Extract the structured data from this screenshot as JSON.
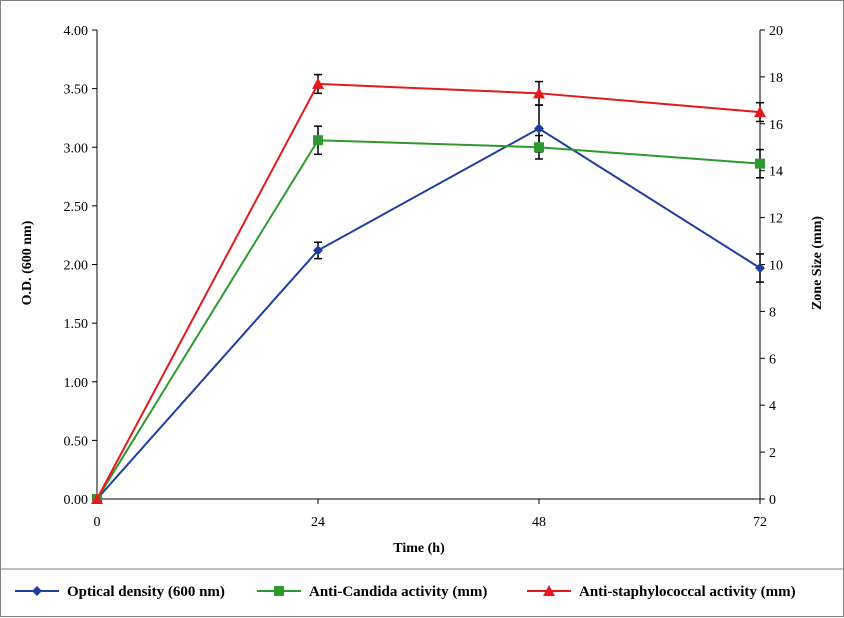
{
  "chart_data": {
    "type": "line",
    "x": [
      0,
      24,
      48,
      72
    ],
    "xlabel": "Time (h)",
    "ylabel": "O.D. (600 nm)",
    "y2label": "Zone Size (mm)",
    "xlim": [
      0,
      72
    ],
    "ylim": [
      0,
      4
    ],
    "y2lim": [
      0,
      20
    ],
    "x_ticks": [
      "0",
      "24",
      "48",
      "72"
    ],
    "y_ticks": [
      "0.00",
      "0.50",
      "1.00",
      "1.50",
      "2.00",
      "2.50",
      "3.00",
      "3.50",
      "4.00"
    ],
    "y2_ticks": [
      "0",
      "2",
      "4",
      "6",
      "8",
      "10",
      "12",
      "14",
      "16",
      "18",
      "20"
    ],
    "grid": false,
    "legend_position": "bottom",
    "series": [
      {
        "name": "Optical density (600 nm)",
        "axis": "left",
        "color": "#1F3F9A",
        "marker": "diamond",
        "values": [
          0.0,
          2.12,
          3.16,
          1.97
        ],
        "errors": [
          0.0,
          0.07,
          0.2,
          0.12
        ]
      },
      {
        "name": "Anti-Candida activity (mm)",
        "axis": "right",
        "color": "#2E9A2E",
        "marker": "square",
        "values": [
          0.0,
          15.3,
          15.0,
          14.3
        ],
        "errors": [
          0.0,
          0.6,
          0.5,
          0.6
        ]
      },
      {
        "name": "Anti-staphylococcal activity (mm)",
        "axis": "right",
        "color": "#E31A1C",
        "marker": "triangle",
        "values": [
          0.0,
          17.7,
          17.3,
          16.5
        ],
        "errors": [
          0.0,
          0.4,
          0.5,
          0.4
        ]
      }
    ]
  }
}
